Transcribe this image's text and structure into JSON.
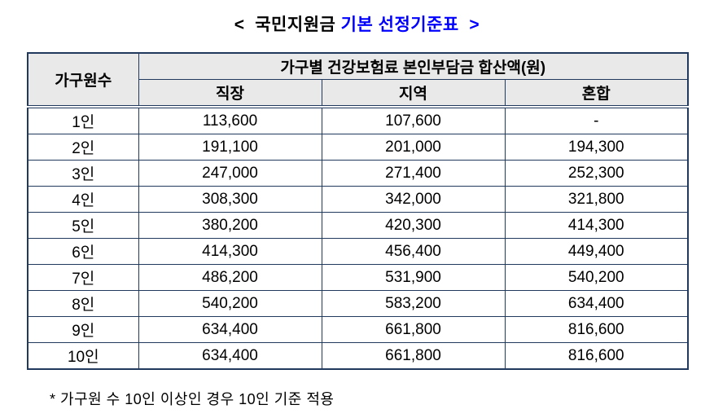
{
  "title": {
    "prefix": "<  국민지원금 ",
    "highlight": "기본 선정기준표  >"
  },
  "table": {
    "corner_header": "가구원수",
    "group_header": "가구별 건강보험료 본인부담금 합산액(원)",
    "sub_headers": [
      "직장",
      "지역",
      "혼합"
    ],
    "rows": [
      {
        "label": "1인",
        "values": [
          "113,600",
          "107,600",
          "-"
        ]
      },
      {
        "label": "2인",
        "values": [
          "191,100",
          "201,000",
          "194,300"
        ]
      },
      {
        "label": "3인",
        "values": [
          "247,000",
          "271,400",
          "252,300"
        ]
      },
      {
        "label": "4인",
        "values": [
          "308,300",
          "342,000",
          "321,800"
        ]
      },
      {
        "label": "5인",
        "values": [
          "380,200",
          "420,300",
          "414,300"
        ]
      },
      {
        "label": "6인",
        "values": [
          "414,300",
          "456,400",
          "449,400"
        ]
      },
      {
        "label": "7인",
        "values": [
          "486,200",
          "531,900",
          "540,200"
        ]
      },
      {
        "label": "8인",
        "values": [
          "540,200",
          "583,200",
          "634,400"
        ]
      },
      {
        "label": "9인",
        "values": [
          "634,400",
          "661,800",
          "816,600"
        ]
      },
      {
        "label": "10인",
        "values": [
          "634,400",
          "661,800",
          "816,600"
        ]
      }
    ]
  },
  "footnote": "* 가구원 수 10인 이상인 경우 10인 기준 적용",
  "colors": {
    "title_highlight": "#0000ff",
    "table_border": "#20395c",
    "header_background": "#e9e9e9"
  }
}
